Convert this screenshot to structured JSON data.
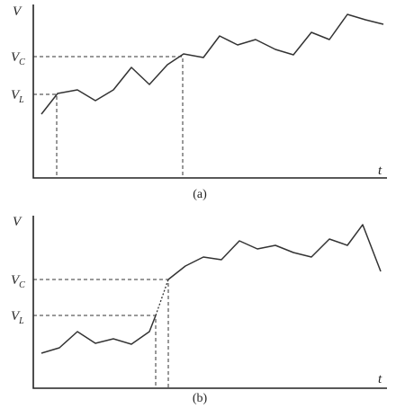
{
  "panels": [
    {
      "y_axis_label": "V",
      "x_axis_label": "t",
      "caption": "(a)",
      "levels": [
        {
          "symbol": "V",
          "subscript": "C"
        },
        {
          "symbol": "V",
          "subscript": "L"
        }
      ]
    },
    {
      "y_axis_label": "V",
      "x_axis_label": "t",
      "caption": "(b)",
      "levels": [
        {
          "symbol": "V",
          "subscript": "C"
        },
        {
          "symbol": "V",
          "subscript": "L"
        }
      ]
    }
  ]
}
